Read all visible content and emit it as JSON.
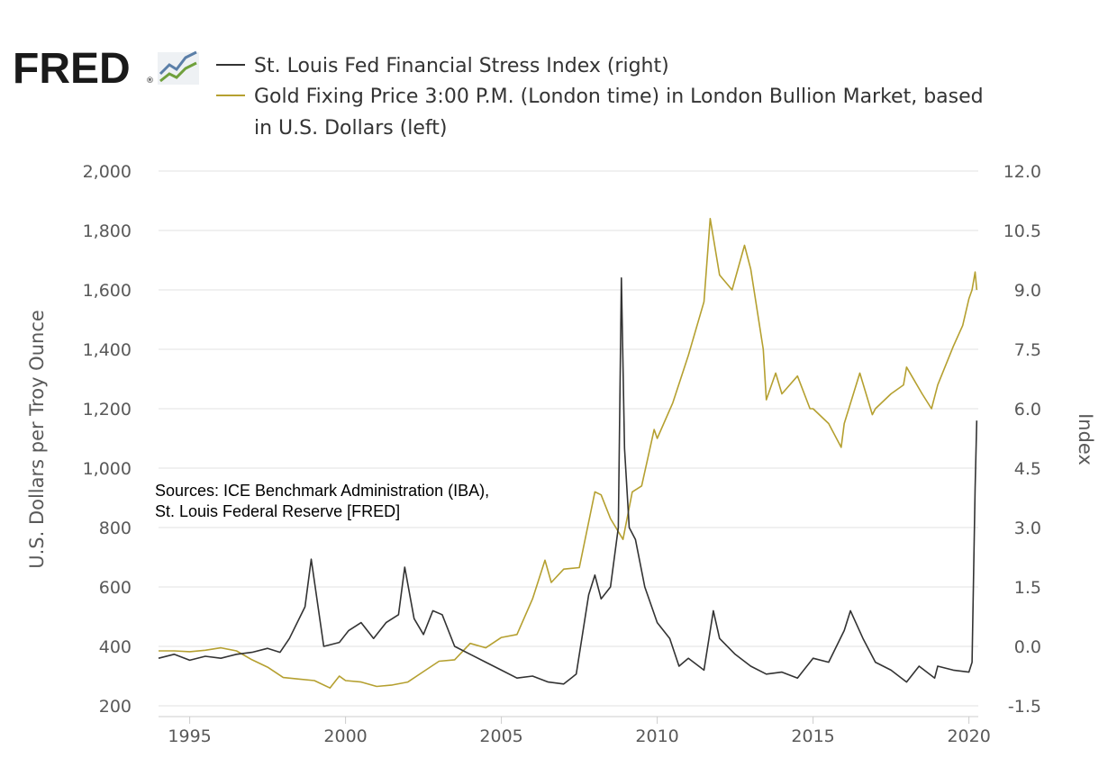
{
  "branding": {
    "logo_text": "FRED",
    "logo_mark": "®",
    "logo_icon": "trend-chart-icon"
  },
  "legend": {
    "items": [
      {
        "label": "St. Louis Fed Financial Stress Index (right)",
        "color": "#333333"
      },
      {
        "label_lines": [
          "Gold Fixing Price 3:00 P.M. (London time) in London Bullion Market, based",
          "in U.S. Dollars (left)"
        ],
        "color": "#b5a030"
      }
    ]
  },
  "source_note": {
    "lines": [
      "Sources:  ICE Benchmark Administration (IBA),",
      "St. Louis Federal Reserve [FRED]"
    ]
  },
  "chart_data": {
    "type": "line",
    "grid": true,
    "left_axis": {
      "label": "U.S. Dollars per Troy Ounce",
      "range": [
        200,
        2000
      ],
      "ticks": [
        200,
        400,
        600,
        800,
        1000,
        1200,
        1400,
        1600,
        1800,
        2000
      ],
      "tick_labels": [
        "200",
        "400",
        "600",
        "800",
        "1,000",
        "1,200",
        "1,400",
        "1,600",
        "1,800",
        "2,000"
      ]
    },
    "right_axis": {
      "label": "Index",
      "range": [
        -1.5,
        12.0
      ],
      "ticks": [
        -1.5,
        0.0,
        1.5,
        3.0,
        4.5,
        6.0,
        7.5,
        9.0,
        10.5,
        12.0
      ],
      "tick_labels": [
        "-1.5",
        "0.0",
        "1.5",
        "3.0",
        "4.5",
        "6.0",
        "7.5",
        "9.0",
        "10.5",
        "12.0"
      ]
    },
    "x_axis": {
      "range": [
        1994.0,
        2020.3
      ],
      "ticks": [
        1995,
        2000,
        2005,
        2010,
        2015,
        2020
      ],
      "tick_labels": [
        "1995",
        "2000",
        "2005",
        "2010",
        "2015",
        "2020"
      ]
    },
    "series": [
      {
        "name": "Gold Fixing Price 3:00 P.M. (London time) in London Bullion Market, based in U.S. Dollars (left)",
        "axis": "left",
        "color": "#b5a030",
        "x": [
          1994.0,
          1994.5,
          1995.0,
          1995.5,
          1996.0,
          1996.5,
          1997.0,
          1997.5,
          1998.0,
          1998.5,
          1999.0,
          1999.5,
          1999.8,
          2000.0,
          2000.5,
          2001.0,
          2001.5,
          2002.0,
          2002.5,
          2003.0,
          2003.5,
          2004.0,
          2004.5,
          2005.0,
          2005.5,
          2006.0,
          2006.4,
          2006.6,
          2007.0,
          2007.5,
          2008.0,
          2008.2,
          2008.5,
          2008.9,
          2009.2,
          2009.5,
          2009.9,
          2010.0,
          2010.5,
          2011.0,
          2011.5,
          2011.7,
          2012.0,
          2012.4,
          2012.8,
          2013.0,
          2013.4,
          2013.5,
          2013.8,
          2014.0,
          2014.5,
          2014.9,
          2015.0,
          2015.5,
          2015.9,
          2016.0,
          2016.5,
          2016.9,
          2017.0,
          2017.5,
          2017.9,
          2018.0,
          2018.5,
          2018.8,
          2019.0,
          2019.5,
          2019.8,
          2020.0,
          2020.1,
          2020.2,
          2020.25
        ],
        "values": [
          385,
          385,
          382,
          387,
          395,
          385,
          355,
          330,
          295,
          290,
          285,
          260,
          300,
          285,
          280,
          265,
          270,
          280,
          315,
          350,
          355,
          410,
          395,
          430,
          440,
          560,
          690,
          615,
          660,
          665,
          920,
          910,
          830,
          760,
          920,
          940,
          1130,
          1100,
          1220,
          1380,
          1560,
          1840,
          1650,
          1600,
          1750,
          1670,
          1400,
          1230,
          1320,
          1250,
          1310,
          1200,
          1200,
          1150,
          1070,
          1150,
          1320,
          1180,
          1200,
          1250,
          1280,
          1340,
          1250,
          1200,
          1280,
          1410,
          1480,
          1570,
          1600,
          1660,
          1600
        ]
      },
      {
        "name": "St. Louis Fed Financial Stress Index (right)",
        "axis": "right",
        "color": "#333333",
        "x": [
          1994.0,
          1994.5,
          1995.0,
          1995.5,
          1996.0,
          1996.5,
          1997.0,
          1997.5,
          1997.9,
          1998.2,
          1998.7,
          1998.9,
          1999.3,
          1999.8,
          2000.1,
          2000.5,
          2000.9,
          2001.3,
          2001.7,
          2001.9,
          2002.2,
          2002.5,
          2002.8,
          2003.1,
          2003.5,
          2004.0,
          2004.5,
          2005.0,
          2005.5,
          2006.0,
          2006.5,
          2007.0,
          2007.4,
          2007.6,
          2007.8,
          2008.0,
          2008.2,
          2008.5,
          2008.75,
          2008.85,
          2008.95,
          2009.1,
          2009.3,
          2009.6,
          2010.0,
          2010.4,
          2010.7,
          2011.0,
          2011.5,
          2011.8,
          2012.0,
          2012.5,
          2013.0,
          2013.5,
          2014.0,
          2014.5,
          2015.0,
          2015.5,
          2016.0,
          2016.2,
          2016.6,
          2017.0,
          2017.5,
          2018.0,
          2018.4,
          2018.9,
          2019.0,
          2019.5,
          2020.0,
          2020.1,
          2020.2,
          2020.25
        ],
        "values": [
          -0.3,
          -0.2,
          -0.35,
          -0.25,
          -0.3,
          -0.2,
          -0.15,
          -0.05,
          -0.15,
          0.2,
          1.0,
          2.2,
          0.0,
          0.1,
          0.4,
          0.6,
          0.2,
          0.6,
          0.8,
          2.0,
          0.7,
          0.3,
          0.9,
          0.8,
          0.0,
          -0.2,
          -0.4,
          -0.6,
          -0.8,
          -0.75,
          -0.9,
          -0.95,
          -0.7,
          0.3,
          1.3,
          1.8,
          1.2,
          1.5,
          3.0,
          9.3,
          5.0,
          3.0,
          2.7,
          1.5,
          0.6,
          0.2,
          -0.5,
          -0.3,
          -0.6,
          0.9,
          0.2,
          -0.2,
          -0.5,
          -0.7,
          -0.65,
          -0.8,
          -0.3,
          -0.4,
          0.4,
          0.9,
          0.2,
          -0.4,
          -0.6,
          -0.9,
          -0.5,
          -0.8,
          -0.5,
          -0.6,
          -0.65,
          -0.4,
          4.0,
          5.7
        ]
      }
    ]
  }
}
